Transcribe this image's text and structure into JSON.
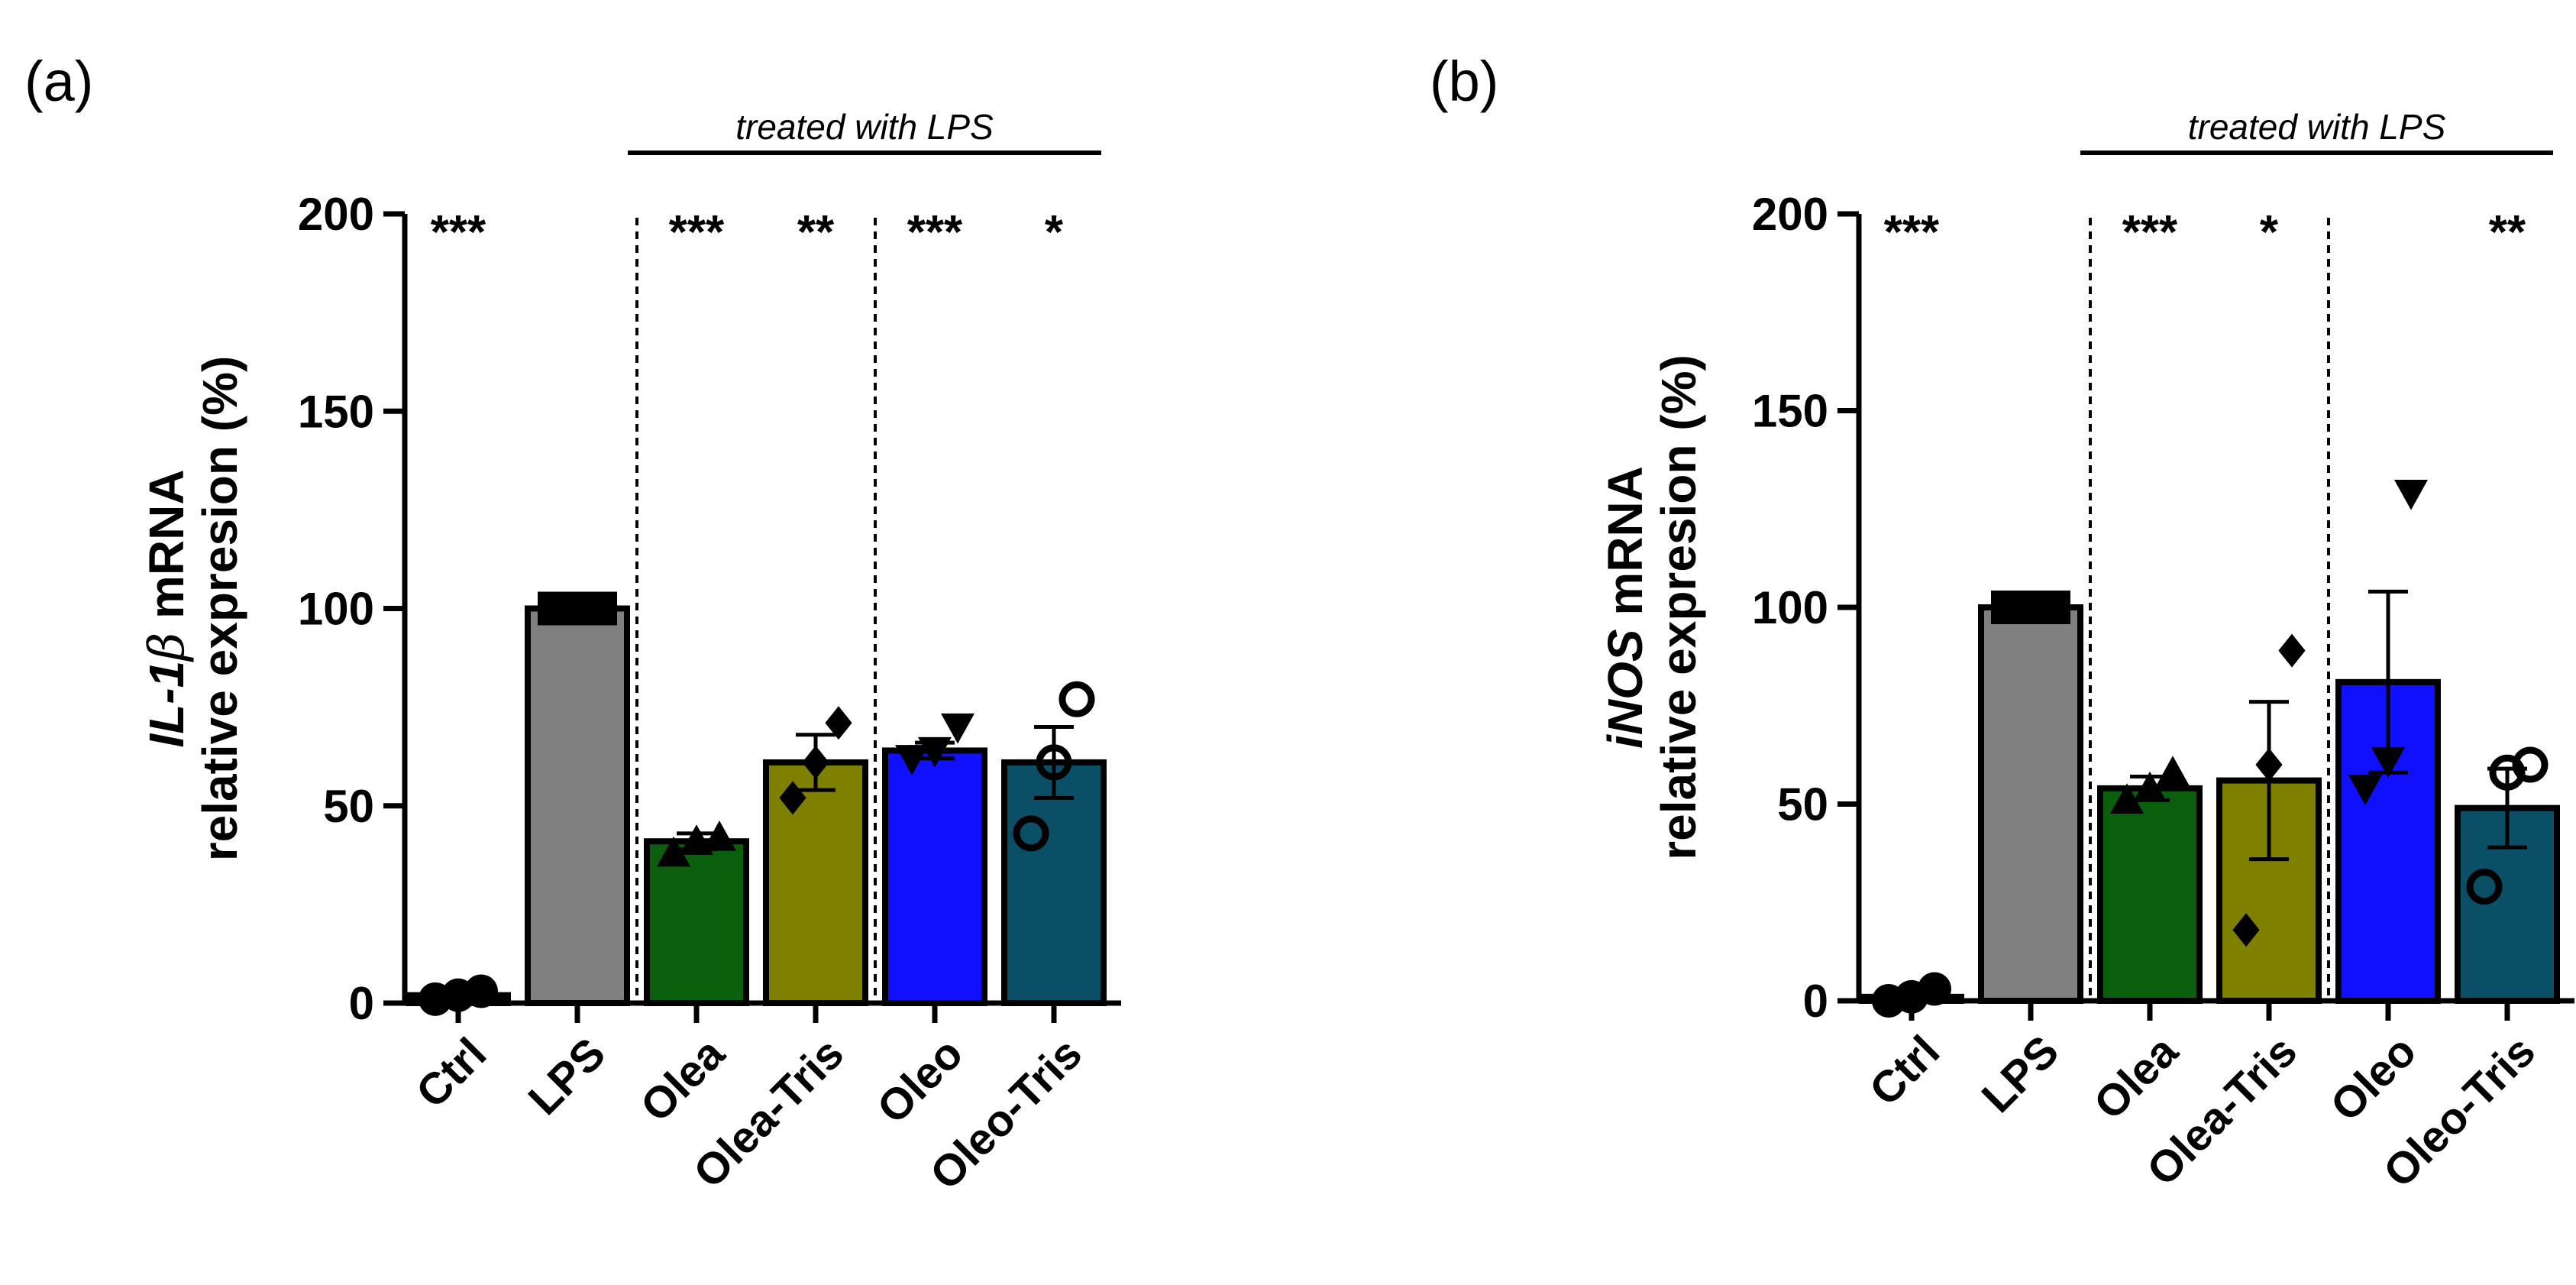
{
  "chart_data": [
    {
      "type": "bar",
      "panel_label": "(a)",
      "ylabel_gene": "IL-1",
      "ylabel_greek": "β",
      "ylabel_suffix": " mRNA",
      "ylabel_line2": "relative expresion (%)",
      "ylim": [
        0,
        200
      ],
      "yticks": [
        0,
        50,
        100,
        150,
        200
      ],
      "bracket_label": "treated with LPS",
      "categories": [
        "Ctrl",
        "LPS",
        "Olea",
        "Olea-Tris",
        "Oleo",
        "Oleo-Tris"
      ],
      "values": [
        2,
        100,
        41,
        61,
        64,
        61
      ],
      "sem": [
        0.5,
        0.5,
        2,
        7,
        2,
        9
      ],
      "colors": [
        "#000000",
        "#808080",
        "#0b5e0b",
        "#7f7f00",
        "#1010ff",
        "#0a4f66"
      ],
      "markers": [
        "circle",
        "square",
        "triangle",
        "diamond",
        "triangle-down",
        "circle-open"
      ],
      "points": [
        [
          1,
          2,
          3
        ],
        [
          100,
          100,
          100
        ],
        [
          38,
          41,
          42
        ],
        [
          52,
          61,
          71
        ],
        [
          62,
          64,
          70
        ],
        [
          43,
          61,
          77
        ]
      ],
      "significance": [
        "***",
        "",
        "***",
        "**",
        "***",
        "*"
      ],
      "dividers_after": [
        1,
        3
      ]
    },
    {
      "type": "bar",
      "panel_label": "(b)",
      "ylabel_gene": "iNOS",
      "ylabel_greek": "",
      "ylabel_suffix": " mRNA",
      "ylabel_line2": "relative expresion (%)",
      "ylim": [
        0,
        200
      ],
      "yticks": [
        0,
        50,
        100,
        150,
        200
      ],
      "bracket_label": "treated with LPS",
      "categories": [
        "Ctrl",
        "LPS",
        "Olea",
        "Olea-Tris",
        "Oleo",
        "Oleo-Tris"
      ],
      "values": [
        1,
        100,
        54,
        56,
        81,
        49
      ],
      "sem": [
        0.5,
        0.5,
        3,
        20,
        23,
        10
      ],
      "colors": [
        "#000000",
        "#808080",
        "#0b5e0b",
        "#7f7f00",
        "#1010ff",
        "#0a4f66"
      ],
      "markers": [
        "circle",
        "square",
        "triangle",
        "diamond",
        "triangle-down",
        "circle-open"
      ],
      "points": [
        [
          0,
          1,
          3
        ],
        [
          100,
          100,
          100
        ],
        [
          51,
          54,
          58
        ],
        [
          18,
          60,
          89
        ],
        [
          54,
          61,
          129
        ],
        [
          29,
          58,
          60
        ]
      ],
      "significance": [
        "***",
        "",
        "***",
        "*",
        "",
        "**"
      ],
      "dividers_after": [
        1,
        3
      ]
    }
  ]
}
